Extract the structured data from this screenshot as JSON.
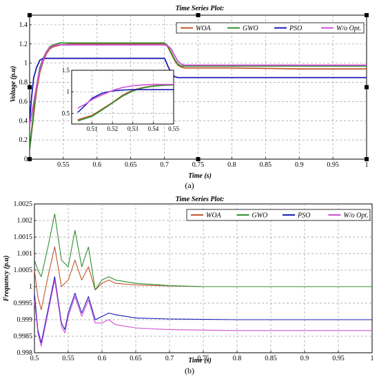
{
  "chart_data": [
    {
      "panel": "a",
      "caption": "(a)",
      "type": "line",
      "title": "Time Series Plot:",
      "xlabel": "Time (s)",
      "ylabel": "Voltage (p.u)",
      "xlim": [
        0.5,
        1.0
      ],
      "ylim": [
        0,
        1.5
      ],
      "xticks": [
        0.55,
        0.6,
        0.65,
        0.7,
        0.75,
        0.8,
        0.85,
        0.9,
        0.95,
        1.0
      ],
      "xtick_labels": [
        "0.55",
        "0.6",
        "0.65",
        "0.7",
        "0.75",
        "0.8",
        "0.85",
        "0.9",
        "0.95",
        "1"
      ],
      "yticks": [
        0,
        0.2,
        0.4,
        0.6,
        0.8,
        1.0,
        1.2,
        1.4
      ],
      "ytick_labels": [
        "0",
        "0.2",
        "0.4",
        "0.6",
        "0.8",
        "1",
        "1.2",
        "1.4"
      ],
      "grid": true,
      "legend_position": "top-right",
      "series": [
        {
          "name": "WOA",
          "color": "#c1552a",
          "x": [
            0.5,
            0.505,
            0.51,
            0.515,
            0.52,
            0.525,
            0.53,
            0.535,
            0.54,
            0.545,
            0.55,
            0.56,
            0.6,
            0.65,
            0.7,
            0.705,
            0.71,
            0.715,
            0.72,
            0.725,
            0.73,
            0.75,
            0.8,
            0.9,
            1.0
          ],
          "y": [
            0.1,
            0.4,
            0.7,
            0.9,
            1.02,
            1.1,
            1.15,
            1.17,
            1.18,
            1.19,
            1.19,
            1.2,
            1.2,
            1.2,
            1.2,
            1.17,
            1.1,
            1.03,
            0.98,
            0.96,
            0.95,
            0.95,
            0.95,
            0.94,
            0.94
          ]
        },
        {
          "name": "GWO",
          "color": "#2f8f2f",
          "x": [
            0.5,
            0.505,
            0.51,
            0.515,
            0.52,
            0.525,
            0.53,
            0.535,
            0.54,
            0.545,
            0.55,
            0.56,
            0.6,
            0.65,
            0.7,
            0.705,
            0.71,
            0.715,
            0.72,
            0.725,
            0.73,
            0.75,
            0.8,
            0.9,
            1.0
          ],
          "y": [
            0.1,
            0.45,
            0.75,
            0.95,
            1.05,
            1.12,
            1.17,
            1.19,
            1.2,
            1.21,
            1.21,
            1.21,
            1.21,
            1.21,
            1.21,
            1.18,
            1.11,
            1.04,
            0.99,
            0.97,
            0.97,
            0.97,
            0.97,
            0.97,
            0.97
          ]
        },
        {
          "name": "PSO",
          "color": "#1a1ab8",
          "x": [
            0.5,
            0.503,
            0.506,
            0.51,
            0.515,
            0.52,
            0.525,
            0.53,
            0.7,
            0.701,
            0.705,
            0.71,
            0.715,
            0.72,
            0.73,
            0.8,
            0.9,
            1.0
          ],
          "y": [
            0.4,
            0.65,
            0.85,
            0.95,
            1.03,
            1.05,
            1.05,
            1.05,
            1.05,
            1.04,
            0.97,
            0.9,
            0.86,
            0.85,
            0.85,
            0.85,
            0.85,
            0.85
          ]
        },
        {
          "name": "W/o Opt.",
          "color": "#d04ed6",
          "x": [
            0.5,
            0.505,
            0.51,
            0.515,
            0.52,
            0.525,
            0.53,
            0.535,
            0.54,
            0.55,
            0.56,
            0.6,
            0.65,
            0.7,
            0.705,
            0.71,
            0.715,
            0.72,
            0.725,
            0.73,
            0.75,
            0.8,
            0.9,
            1.0
          ],
          "y": [
            0.35,
            0.55,
            0.75,
            0.92,
            1.04,
            1.12,
            1.16,
            1.18,
            1.19,
            1.19,
            1.19,
            1.19,
            1.19,
            1.19,
            1.18,
            1.15,
            1.08,
            1.02,
            0.99,
            0.98,
            0.98,
            0.98,
            0.98,
            0.98
          ]
        }
      ],
      "inset": {
        "xlim": [
          0.5,
          0.55
        ],
        "ylim": [
          0.25,
          1.5
        ],
        "xticks": [
          0.51,
          0.52,
          0.53,
          0.54,
          0.55
        ],
        "xtick_labels": [
          "0.51",
          "0.52",
          "0.53",
          "0.54",
          "0.55"
        ],
        "yticks": [
          0.5,
          1.0,
          1.5
        ],
        "ytick_labels": [
          "0.5",
          "1",
          "1.5"
        ],
        "series": [
          {
            "name": "WOA",
            "color": "#c1552a",
            "x": [
              0.503,
              0.51,
              0.515,
              0.52,
              0.525,
              0.53,
              0.535,
              0.54,
              0.545,
              0.55
            ],
            "y": [
              0.35,
              0.45,
              0.6,
              0.75,
              0.92,
              1.04,
              1.1,
              1.14,
              1.15,
              1.16
            ]
          },
          {
            "name": "GWO",
            "color": "#2f8f2f",
            "x": [
              0.503,
              0.51,
              0.515,
              0.52,
              0.525,
              0.53,
              0.535,
              0.54,
              0.545,
              0.55
            ],
            "y": [
              0.32,
              0.43,
              0.58,
              0.74,
              0.9,
              1.02,
              1.09,
              1.13,
              1.15,
              1.16
            ]
          },
          {
            "name": "PSO",
            "color": "#1a1ab8",
            "x": [
              0.503,
              0.507,
              0.51,
              0.515,
              0.52,
              0.525,
              0.53,
              0.55
            ],
            "y": [
              0.52,
              0.7,
              0.85,
              0.97,
              1.02,
              1.04,
              1.05,
              1.05
            ]
          },
          {
            "name": "W/o Opt.",
            "color": "#d04ed6",
            "x": [
              0.503,
              0.507,
              0.51,
              0.515,
              0.52,
              0.525,
              0.53,
              0.535,
              0.54,
              0.55
            ],
            "y": [
              0.62,
              0.72,
              0.82,
              0.93,
              1.03,
              1.1,
              1.14,
              1.16,
              1.17,
              1.17
            ]
          }
        ]
      }
    },
    {
      "panel": "b",
      "caption": "(b)",
      "type": "line",
      "title": "Time Series Plot:",
      "xlabel": "Time (s)",
      "ylabel": "Frequency (p.u)",
      "xlim": [
        0.5,
        1.0
      ],
      "ylim": [
        0.998,
        1.0025
      ],
      "xticks": [
        0.5,
        0.55,
        0.6,
        0.65,
        0.7,
        0.75,
        0.8,
        0.85,
        0.9,
        0.95,
        1.0
      ],
      "xtick_labels": [
        "0.5",
        "0.55",
        "0.6",
        "0.65",
        "0.7",
        "0.75",
        "0.8",
        "0.85",
        "0.9",
        "0.95",
        "1"
      ],
      "yticks": [
        0.998,
        0.9985,
        0.999,
        0.9995,
        1.0,
        1.0005,
        1.001,
        1.0015,
        1.002,
        1.0025
      ],
      "ytick_labels": [
        "0.998",
        "0.9985",
        "0.999",
        "0.9995",
        "1",
        "1.0005",
        "1.001",
        "1.0015",
        "1.002",
        "1.0025"
      ],
      "grid": true,
      "legend_position": "top-right",
      "series": [
        {
          "name": "WOA",
          "color": "#c1552a",
          "x": [
            0.5,
            0.505,
            0.51,
            0.52,
            0.53,
            0.54,
            0.55,
            0.56,
            0.57,
            0.58,
            0.59,
            0.6,
            0.61,
            0.62,
            0.65,
            0.7,
            0.75,
            0.8,
            0.9,
            1.0
          ],
          "y": [
            1.0005,
            0.9997,
            0.9993,
            1.0003,
            1.0012,
            1.0,
            1.0002,
            1.0008,
            1.0002,
            1.0006,
            0.9999,
            1.0001,
            1.0002,
            1.0001,
            1.00005,
            1.00002,
            1.0,
            1.0,
            1.0,
            1.0
          ]
        },
        {
          "name": "GWO",
          "color": "#2f8f2f",
          "x": [
            0.5,
            0.505,
            0.51,
            0.52,
            0.53,
            0.54,
            0.55,
            0.56,
            0.57,
            0.58,
            0.59,
            0.6,
            0.61,
            0.62,
            0.65,
            0.7,
            0.75,
            0.8,
            0.9,
            1.0
          ],
          "y": [
            1.0008,
            1.0005,
            1.0003,
            1.0012,
            1.0022,
            1.0008,
            1.0006,
            1.0017,
            1.0006,
            1.0012,
            0.9999,
            1.0002,
            1.0003,
            1.0002,
            1.0001,
            1.00003,
            1.0,
            1.0,
            1.0,
            1.0
          ]
        },
        {
          "name": "PSO",
          "color": "#1a1ab8",
          "x": [
            0.5,
            0.505,
            0.51,
            0.515,
            0.52,
            0.53,
            0.54,
            0.545,
            0.55,
            0.56,
            0.57,
            0.58,
            0.59,
            0.6,
            0.61,
            0.62,
            0.65,
            0.7,
            0.8,
            0.9,
            1.0
          ],
          "y": [
            0.9998,
            0.9987,
            0.9983,
            0.9988,
            0.9993,
            1.0003,
            0.9989,
            0.9987,
            0.9992,
            0.9998,
            0.9992,
            0.9997,
            0.999,
            0.9991,
            0.9992,
            0.99915,
            0.99905,
            0.99902,
            0.999,
            0.999,
            0.999
          ]
        },
        {
          "name": "W/o Opt.",
          "color": "#d04ed6",
          "x": [
            0.5,
            0.505,
            0.51,
            0.515,
            0.52,
            0.53,
            0.54,
            0.545,
            0.55,
            0.56,
            0.57,
            0.58,
            0.59,
            0.6,
            0.61,
            0.62,
            0.65,
            0.7,
            0.8,
            0.9,
            1.0
          ],
          "y": [
            0.9996,
            0.9986,
            0.9982,
            0.9987,
            0.9992,
            1.0002,
            0.9988,
            0.9986,
            0.9991,
            0.9997,
            0.9991,
            0.9996,
            0.9989,
            0.9989,
            0.999,
            0.99885,
            0.99875,
            0.9987,
            0.99867,
            0.99867,
            0.99867
          ]
        }
      ]
    }
  ]
}
